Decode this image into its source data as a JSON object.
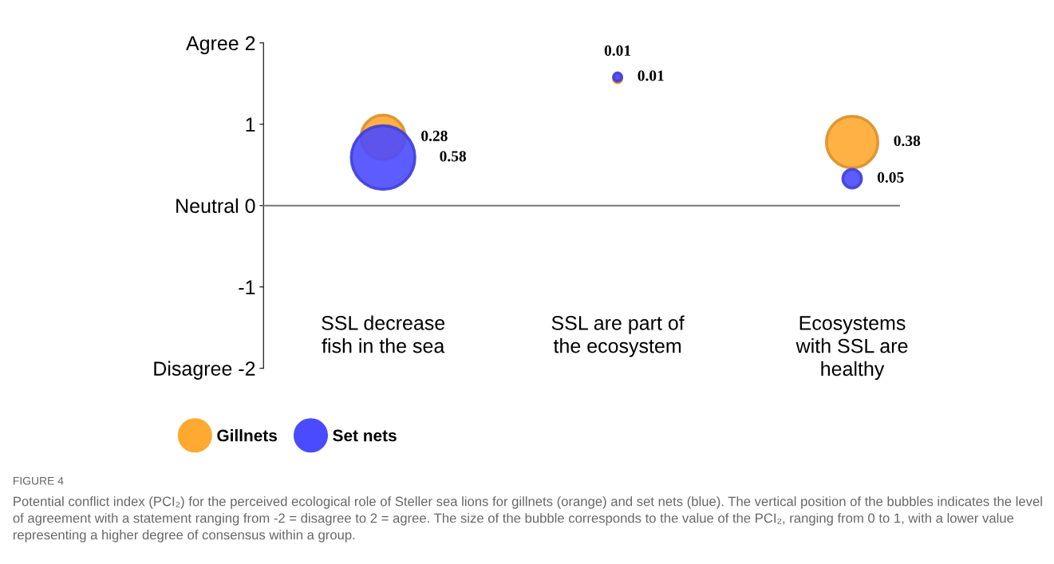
{
  "chart_data": {
    "type": "bubble",
    "categories": [
      "SSL decrease\nfish in the sea",
      "SSL are part of\nthe ecosystem",
      "Ecosystems\nwith SSL are\nhealthy"
    ],
    "series": [
      {
        "name": "Gillnets",
        "color": "#ffa930",
        "values": [
          0.84,
          1.56,
          0.78
        ],
        "sizes": [
          0.28,
          0.01,
          0.38
        ],
        "value_labels": [
          "0.28",
          "0.01",
          "0.38"
        ]
      },
      {
        "name": "Set nets",
        "color": "#4a4aff",
        "values": [
          0.59,
          1.58,
          0.33
        ],
        "sizes": [
          0.58,
          0.01,
          0.05
        ],
        "value_labels": [
          "0.58",
          "0.01",
          "0.05"
        ]
      }
    ],
    "ylim": [
      -2,
      2
    ],
    "yticks": [
      {
        "value": 2,
        "label": "Agree 2"
      },
      1,
      {
        "value": 0,
        "label": "Neutral 0"
      },
      -1,
      {
        "value": -2,
        "label": "Disagree -2"
      }
    ],
    "legend": "bottom left",
    "annotations": [
      "FIGURE 4",
      "Potential conflict index (PCI₂) for the perceived ecological role of Steller sea lions for gillnets (orange) and set nets (blue). The vertical position of the bubbles indicates the level of agreement with a statement ranging from -2 = disagree to 2 = agree. The size of the bubble corresponds to the value of the PCI₂, ranging from 0 to 1, with a lower value representing a higher degree of consensus within a group."
    ]
  }
}
